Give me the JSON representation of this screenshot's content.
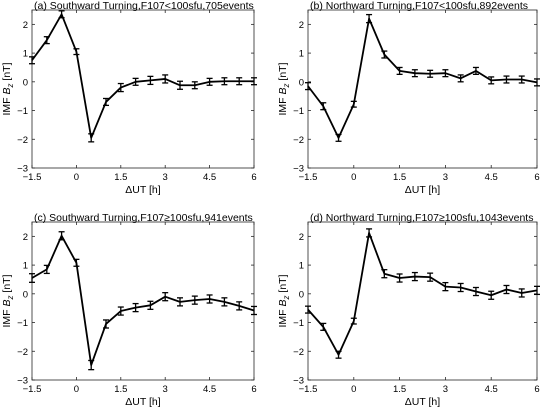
{
  "chart_data": [
    {
      "type": "line",
      "title": "(a) Southward Turning,F107<100sfu,705events",
      "xlabel": "ΔUT [h]",
      "ylabel": "IMF B_z [nT]",
      "xlim": [
        -1.5,
        6
      ],
      "ylim": [
        -3,
        2.5
      ],
      "xticks": [
        -1.5,
        0,
        1.5,
        3,
        4.5,
        6
      ],
      "yticks": [
        -3,
        -2,
        -1,
        0,
        1,
        2
      ],
      "grid": false,
      "x": [
        -1.5,
        -1.0,
        -0.5,
        0.0,
        0.5,
        1.0,
        1.5,
        2.0,
        2.5,
        3.0,
        3.5,
        4.0,
        4.5,
        5.0,
        5.5,
        6.0
      ],
      "values": [
        0.75,
        1.45,
        2.35,
        1.05,
        -1.95,
        -0.7,
        -0.2,
        0.0,
        0.05,
        0.1,
        -0.12,
        -0.12,
        0.0,
        0.02,
        0.02,
        0.02
      ],
      "err": [
        0.12,
        0.12,
        0.12,
        0.1,
        0.14,
        0.12,
        0.14,
        0.12,
        0.14,
        0.14,
        0.14,
        0.12,
        0.12,
        0.12,
        0.12,
        0.12
      ]
    },
    {
      "type": "line",
      "title": "(b) Northward Turning,F107<100sfu,892events",
      "xlabel": "ΔUT [h]",
      "ylabel": "IMF B_z [nT]",
      "xlim": [
        -1.5,
        6
      ],
      "ylim": [
        -3,
        2.5
      ],
      "xticks": [
        -1.5,
        0,
        1.5,
        3,
        4.5,
        6
      ],
      "yticks": [
        -3,
        -2,
        -1,
        0,
        1,
        2
      ],
      "grid": false,
      "x": [
        -1.5,
        -1.0,
        -0.5,
        0.0,
        0.5,
        1.0,
        1.5,
        2.0,
        2.5,
        3.0,
        3.5,
        4.0,
        4.5,
        5.0,
        5.5,
        6.0
      ],
      "values": [
        -0.15,
        -0.85,
        -1.95,
        -0.78,
        2.2,
        0.95,
        0.38,
        0.3,
        0.28,
        0.3,
        0.12,
        0.38,
        0.05,
        0.08,
        0.08,
        -0.02
      ],
      "err": [
        0.12,
        0.12,
        0.12,
        0.1,
        0.14,
        0.12,
        0.12,
        0.12,
        0.12,
        0.12,
        0.12,
        0.12,
        0.12,
        0.12,
        0.12,
        0.12
      ]
    },
    {
      "type": "line",
      "title": "(c) Southward Turning,F107≥100sfu,941events",
      "xlabel": "ΔUT [h]",
      "ylabel": "IMF B_z [nT]",
      "xlim": [
        -1.5,
        6
      ],
      "ylim": [
        -3,
        2.5
      ],
      "xticks": [
        -1.5,
        0,
        1.5,
        3,
        4.5,
        6
      ],
      "yticks": [
        -3,
        -2,
        -1,
        0,
        1,
        2
      ],
      "grid": false,
      "x": [
        -1.5,
        -1.0,
        -0.5,
        0.0,
        0.5,
        1.0,
        1.5,
        2.0,
        2.5,
        3.0,
        3.5,
        4.0,
        4.5,
        5.0,
        5.5,
        6.0
      ],
      "values": [
        0.55,
        0.85,
        2.02,
        1.08,
        -2.48,
        -1.05,
        -0.6,
        -0.48,
        -0.4,
        -0.1,
        -0.28,
        -0.22,
        -0.18,
        -0.28,
        -0.42,
        -0.58
      ],
      "err": [
        0.15,
        0.14,
        0.14,
        0.12,
        0.16,
        0.14,
        0.14,
        0.14,
        0.14,
        0.14,
        0.14,
        0.14,
        0.14,
        0.14,
        0.14,
        0.14
      ]
    },
    {
      "type": "line",
      "title": "(d) Northward Turning,F107≥100sfu,1043events",
      "xlabel": "ΔUT [h]",
      "ylabel": "IMF B_z [nT]",
      "xlim": [
        -1.5,
        6
      ],
      "ylim": [
        -3,
        2.5
      ],
      "xticks": [
        -1.5,
        0,
        1.5,
        3,
        4.5,
        6
      ],
      "yticks": [
        -3,
        -2,
        -1,
        0,
        1,
        2
      ],
      "grid": false,
      "x": [
        -1.5,
        -1.0,
        -0.5,
        0.0,
        0.5,
        1.0,
        1.5,
        2.0,
        2.5,
        3.0,
        3.5,
        4.0,
        4.5,
        5.0,
        5.5,
        6.0
      ],
      "values": [
        -0.55,
        -1.15,
        -2.12,
        -0.95,
        2.12,
        0.7,
        0.55,
        0.6,
        0.58,
        0.25,
        0.22,
        0.08,
        -0.05,
        0.15,
        0.03,
        0.12
      ],
      "err": [
        0.12,
        0.12,
        0.12,
        0.1,
        0.14,
        0.14,
        0.14,
        0.14,
        0.14,
        0.14,
        0.14,
        0.14,
        0.14,
        0.14,
        0.14,
        0.14
      ]
    }
  ]
}
